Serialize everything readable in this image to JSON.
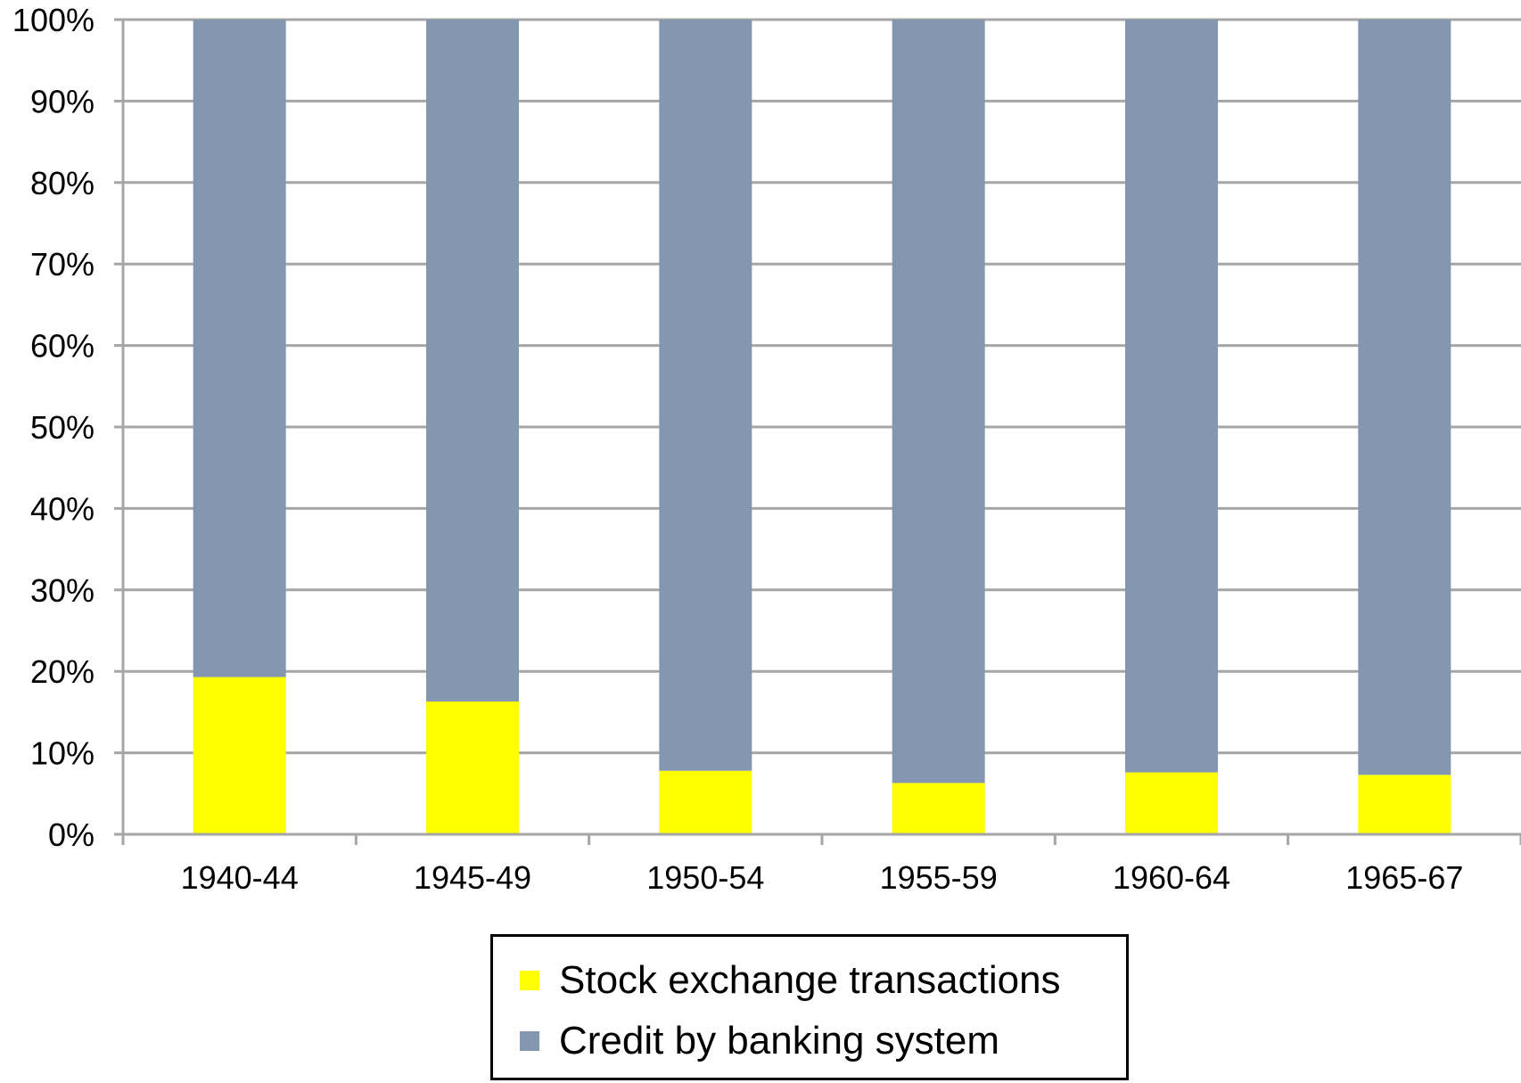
{
  "chart_data": {
    "type": "bar",
    "stacked": true,
    "percent_stacked": true,
    "categories": [
      "1940-44",
      "1945-49",
      "1950-54",
      "1955-59",
      "1960-64",
      "1965-67"
    ],
    "series": [
      {
        "name": "Stock exchange transactions",
        "color": "#ffff00",
        "values": [
          19.3,
          16.3,
          7.8,
          6.3,
          7.6,
          7.3
        ]
      },
      {
        "name": "Credit by banking system",
        "color": "#8497b0",
        "values": [
          80.7,
          83.7,
          92.2,
          93.7,
          92.4,
          92.7
        ]
      }
    ],
    "y_ticks": [
      "0%",
      "10%",
      "20%",
      "30%",
      "40%",
      "50%",
      "60%",
      "70%",
      "80%",
      "90%",
      "100%"
    ],
    "ylim": [
      0,
      100
    ],
    "title": "",
    "xlabel": "",
    "ylabel": "",
    "grid": true,
    "legend_position": "bottom-center",
    "gridline_color": "#a6a6a6"
  }
}
